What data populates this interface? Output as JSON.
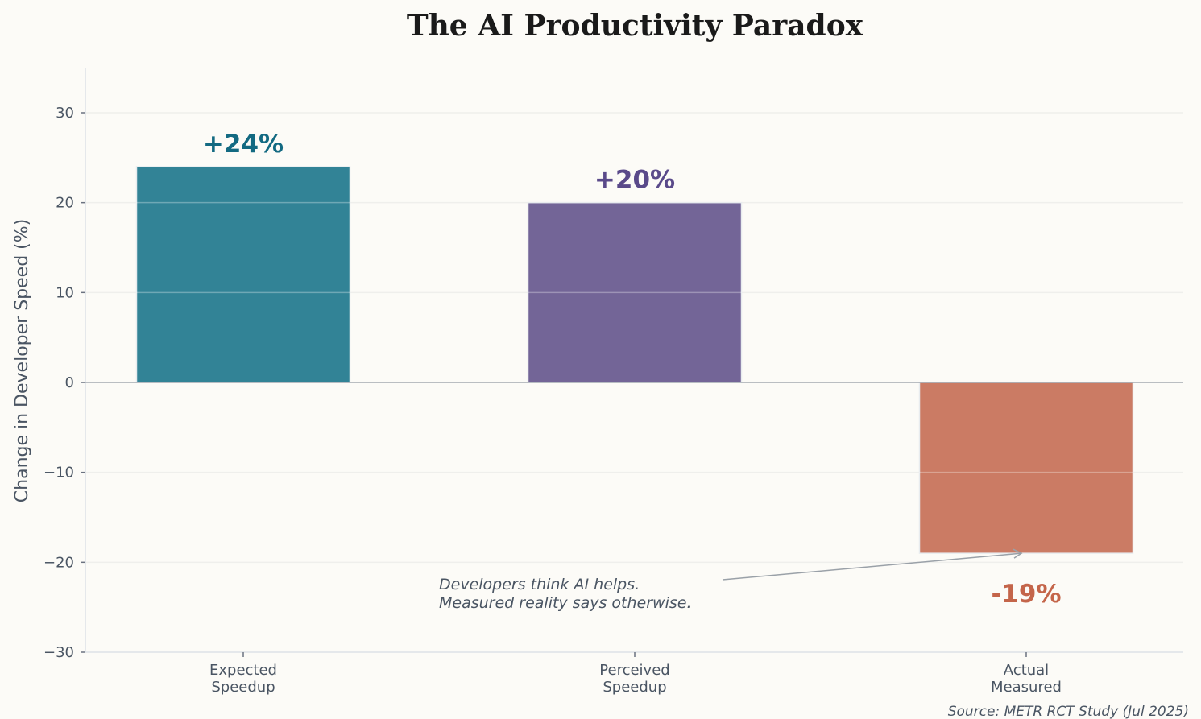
{
  "chart_data": {
    "type": "bar",
    "title": "The AI Productivity Paradox",
    "ylabel": "Change in Developer Speed (%)",
    "xlabel": "",
    "ylim": [
      -30,
      35
    ],
    "yticks": [
      -30,
      -20,
      -10,
      0,
      10,
      20,
      30
    ],
    "ytick_labels": [
      "−30",
      "−20",
      "−10",
      "0",
      "10",
      "20",
      "30"
    ],
    "grid": "horizontal",
    "categories": [
      [
        "Expected",
        "Speedup"
      ],
      [
        "Perceived",
        "Speedup"
      ],
      [
        "Actual",
        "Measured"
      ]
    ],
    "values": [
      24,
      20,
      -19
    ],
    "data_labels": [
      "+24%",
      "+20%",
      "-19%"
    ],
    "bar_colors": [
      "#328396",
      "#736597",
      "#cb7b64"
    ],
    "label_colors": [
      "#136a82",
      "#5a4a8a",
      "#c4654a"
    ],
    "annotation": {
      "lines": [
        "Developers think AI helps.",
        "Measured reality says otherwise."
      ],
      "arrow_target": {
        "category": "Actual Measured",
        "value": -19
      }
    },
    "source": "Source: METR RCT Study (Jul 2025)"
  }
}
